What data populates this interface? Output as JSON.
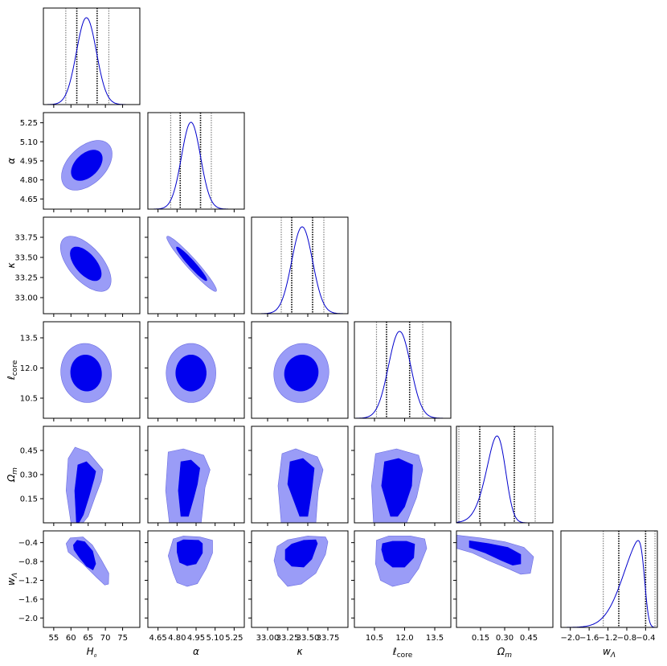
{
  "chart_data": {
    "type": "corner",
    "parameters": [
      {
        "key": "H0",
        "label": "H₀",
        "range": [
          52,
          80
        ],
        "ticks": [
          55,
          60,
          65,
          70,
          75
        ],
        "tick_labels": [
          "55",
          "60",
          "65",
          "70",
          "75"
        ],
        "mean": 64.5,
        "sigma": 2.9,
        "skew": 0.0,
        "quantiles": [
          58.5,
          61.7,
          67.6,
          71.0
        ]
      },
      {
        "key": "alpha",
        "label": "α",
        "range": [
          4.57,
          5.33
        ],
        "ticks": [
          4.65,
          4.8,
          4.95,
          5.1,
          5.25
        ],
        "tick_labels": [
          "4.65",
          "4.80",
          "4.95",
          "5.10",
          "5.25"
        ],
        "mean": 4.91,
        "sigma": 0.075,
        "skew": 0.0,
        "quantiles": [
          4.75,
          4.825,
          4.985,
          5.07
        ]
      },
      {
        "key": "kappa",
        "label": "κ",
        "range": [
          32.8,
          34.0
        ],
        "ticks": [
          33.0,
          33.25,
          33.5,
          33.75
        ],
        "tick_labels": [
          "33.00",
          "33.25",
          "33.50",
          "33.75"
        ],
        "mean": 33.43,
        "sigma": 0.13,
        "skew": 0.0,
        "quantiles": [
          33.17,
          33.3,
          33.56,
          33.7
        ]
      },
      {
        "key": "lcore",
        "label": "ℓcore",
        "range": [
          9.5,
          14.3
        ],
        "ticks": [
          10.5,
          12.0,
          13.5
        ],
        "tick_labels": [
          "10.5",
          "12.0",
          "13.5"
        ],
        "mean": 11.75,
        "sigma": 0.55,
        "skew": 0.0,
        "quantiles": [
          10.6,
          11.1,
          12.25,
          12.9
        ]
      },
      {
        "key": "Om",
        "label": "Ωm",
        "range": [
          0.0,
          0.6
        ],
        "ticks": [
          0.15,
          0.3,
          0.45
        ],
        "tick_labels": [
          "0.15",
          "0.30",
          "0.45"
        ],
        "mean": 0.3,
        "sigma": 0.09,
        "skew": -2.0,
        "quantiles": [
          0.015,
          0.145,
          0.36,
          0.49
        ]
      },
      {
        "key": "wL",
        "label": "wΛ",
        "range": [
          -2.2,
          -0.15
        ],
        "ticks": [
          -2.0,
          -1.6,
          -1.2,
          -0.8,
          -0.4
        ],
        "tick_labels": [
          "−2.0",
          "−1.6",
          "−1.2",
          "−0.8",
          "−0.4"
        ],
        "mean": -0.42,
        "sigma": 0.42,
        "skew": -6.0,
        "quantiles": [
          -1.3,
          -0.97,
          -0.4,
          -0.2
        ]
      }
    ],
    "contours": [
      {
        "x": "H0",
        "y": "alpha",
        "cx": 64.6,
        "cy": 4.915,
        "sx": 3.0,
        "sy": 0.08,
        "rho": 0.45,
        "shape": "ellipse"
      },
      {
        "x": "H0",
        "y": "kappa",
        "cx": 64.3,
        "cy": 33.42,
        "sx": 3.0,
        "sy": 0.14,
        "rho": -0.6,
        "shape": "ellipse"
      },
      {
        "x": "alpha",
        "y": "kappa",
        "cx": 4.915,
        "cy": 33.42,
        "sx": 0.08,
        "sy": 0.14,
        "rho": -0.96,
        "shape": "ellipse"
      },
      {
        "x": "H0",
        "y": "lcore",
        "cx": 64.4,
        "cy": 11.75,
        "sx": 3.0,
        "sy": 0.6,
        "rho": -0.05,
        "shape": "ellipse"
      },
      {
        "x": "alpha",
        "y": "lcore",
        "cx": 4.91,
        "cy": 11.75,
        "sx": 0.08,
        "sy": 0.6,
        "rho": 0.0,
        "shape": "ellipse"
      },
      {
        "x": "kappa",
        "y": "lcore",
        "cx": 33.42,
        "cy": 11.75,
        "sx": 0.14,
        "sy": 0.6,
        "rho": 0.05,
        "shape": "ellipse"
      }
    ],
    "quantile_lines": "dotted lines at 1σ (black) and 2σ (gray) bounds",
    "colors": {
      "inner": "#0000ee",
      "outer": "#9a9cf7",
      "outer_stroke": "#6a6ce0",
      "line": "#0000cc"
    },
    "grid": false,
    "legend": "none"
  }
}
